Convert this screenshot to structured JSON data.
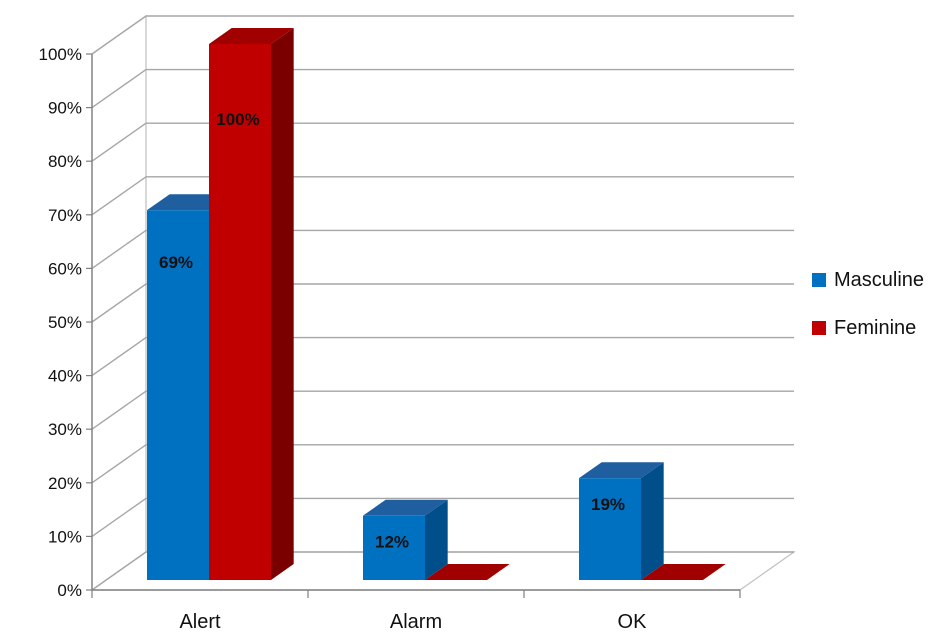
{
  "chart_data": {
    "type": "bar",
    "categories": [
      "Alert",
      "Alarm",
      "OK"
    ],
    "series": [
      {
        "name": "Masculine",
        "values": [
          69,
          12,
          19
        ],
        "labels": [
          "69%",
          "12%",
          "19%"
        ],
        "color": "#0070C0",
        "top_color": "#1F5FA0",
        "side_color": "#004E8A"
      },
      {
        "name": "Feminine",
        "values": [
          100,
          0,
          0
        ],
        "labels": [
          "100%",
          "",
          ""
        ],
        "color": "#C00000",
        "top_color": "#A00000",
        "side_color": "#7A0000"
      }
    ],
    "y_ticks": [
      "0%",
      "10%",
      "20%",
      "30%",
      "40%",
      "50%",
      "60%",
      "70%",
      "80%",
      "90%",
      "100%"
    ],
    "ylim": [
      0,
      100
    ],
    "grid": true,
    "legend_position": "right",
    "style": "3d-clustered-column"
  }
}
